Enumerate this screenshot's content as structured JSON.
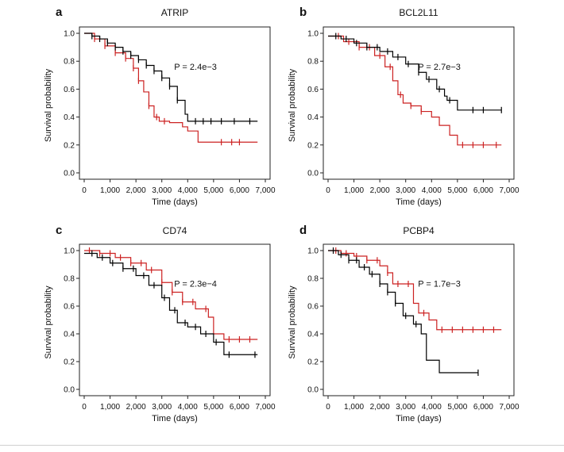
{
  "chart_data": [
    {
      "type": "line",
      "panel_label": "a",
      "title": "ATRIP",
      "pvalue": "P = 2.4e−3",
      "xlabel": "Time (days)",
      "ylabel": "Survival probability",
      "xlim": [
        0,
        7000
      ],
      "ylim": [
        0,
        1
      ],
      "xticks": [
        "0",
        "1,000",
        "2,000",
        "3,000",
        "4,000",
        "5,000",
        "6,000",
        "7,000"
      ],
      "yticks": [
        "0.0",
        "0.2",
        "0.4",
        "0.6",
        "0.8",
        "1.0"
      ],
      "series": [
        {
          "color": "#000000",
          "x": [
            0,
            300,
            600,
            900,
            1200,
            1500,
            1800,
            2100,
            2400,
            2700,
            3000,
            3300,
            3600,
            3900,
            4000,
            4200,
            6700
          ],
          "y": [
            1.0,
            0.98,
            0.96,
            0.93,
            0.9,
            0.87,
            0.84,
            0.81,
            0.77,
            0.73,
            0.68,
            0.62,
            0.52,
            0.42,
            0.37,
            0.37,
            0.37
          ],
          "censor_x": [
            300,
            600,
            900,
            1200,
            1500,
            1800,
            2100,
            2400,
            2700,
            3000,
            3300,
            3600,
            4300,
            4600,
            4900,
            5300,
            5800,
            6400
          ]
        },
        {
          "color": "#cc2222",
          "x": [
            0,
            400,
            800,
            1200,
            1600,
            1900,
            2100,
            2300,
            2500,
            2700,
            2900,
            3300,
            3800,
            4000,
            4400,
            6700
          ],
          "y": [
            1.0,
            0.96,
            0.91,
            0.86,
            0.82,
            0.75,
            0.66,
            0.58,
            0.48,
            0.4,
            0.37,
            0.36,
            0.33,
            0.3,
            0.22,
            0.22
          ],
          "censor_x": [
            400,
            800,
            1200,
            1600,
            1900,
            2100,
            2500,
            2800,
            3100,
            5300,
            5700,
            6000
          ]
        }
      ]
    },
    {
      "type": "line",
      "panel_label": "b",
      "title": "BCL2L11",
      "pvalue": "P = 2.7e−3",
      "xlabel": "Time (days)",
      "ylabel": "Survival probability",
      "xlim": [
        0,
        7000
      ],
      "ylim": [
        0,
        1
      ],
      "xticks": [
        "0",
        "1,000",
        "2,000",
        "3,000",
        "4,000",
        "5,000",
        "6,000",
        "7,000"
      ],
      "yticks": [
        "0.0",
        "0.2",
        "0.4",
        "0.6",
        "0.8",
        "1.0"
      ],
      "series": [
        {
          "color": "#000000",
          "x": [
            0,
            500,
            1000,
            1500,
            2000,
            2500,
            3000,
            3500,
            3800,
            4200,
            4500,
            4600,
            5000,
            6700
          ],
          "y": [
            0.98,
            0.96,
            0.93,
            0.9,
            0.87,
            0.83,
            0.78,
            0.72,
            0.67,
            0.6,
            0.55,
            0.52,
            0.45,
            0.45
          ],
          "censor_x": [
            300,
            700,
            1100,
            1500,
            1900,
            2300,
            2700,
            3100,
            3500,
            3900,
            4300,
            4700,
            5600,
            6000,
            6700
          ]
        },
        {
          "color": "#cc2222",
          "x": [
            0,
            600,
            1200,
            1800,
            2200,
            2500,
            2700,
            2900,
            3200,
            3600,
            4000,
            4300,
            4700,
            5000,
            6700
          ],
          "y": [
            0.98,
            0.94,
            0.9,
            0.84,
            0.76,
            0.66,
            0.56,
            0.5,
            0.48,
            0.44,
            0.4,
            0.34,
            0.27,
            0.2,
            0.2
          ],
          "censor_x": [
            400,
            800,
            1200,
            1600,
            2000,
            2400,
            2800,
            3200,
            3600,
            5200,
            5600,
            6000,
            6500
          ]
        }
      ]
    },
    {
      "type": "line",
      "panel_label": "c",
      "title": "CD74",
      "pvalue": "P = 2.3e−4",
      "xlabel": "Time (days)",
      "ylabel": "Survival probability",
      "xlim": [
        0,
        7000
      ],
      "ylim": [
        0,
        1
      ],
      "xticks": [
        "0",
        "1,000",
        "2,000",
        "3,000",
        "4,000",
        "5,000",
        "6,000",
        "7,000"
      ],
      "yticks": [
        "0.0",
        "0.2",
        "0.4",
        "0.6",
        "0.8",
        "1.0"
      ],
      "series": [
        {
          "color": "#000000",
          "x": [
            0,
            500,
            1000,
            1500,
            2000,
            2500,
            3000,
            3300,
            3600,
            4000,
            4500,
            5000,
            5400,
            6700
          ],
          "y": [
            0.98,
            0.95,
            0.91,
            0.87,
            0.82,
            0.75,
            0.66,
            0.57,
            0.48,
            0.45,
            0.4,
            0.34,
            0.25,
            0.25
          ],
          "censor_x": [
            300,
            700,
            1100,
            1500,
            1900,
            2300,
            2700,
            3100,
            3500,
            3900,
            4300,
            4700,
            5100,
            5600,
            6600
          ]
        },
        {
          "color": "#cc2222",
          "x": [
            0,
            600,
            1200,
            1800,
            2400,
            3000,
            3400,
            3800,
            4300,
            4800,
            5000,
            5400,
            6700
          ],
          "y": [
            1.0,
            0.98,
            0.95,
            0.91,
            0.86,
            0.77,
            0.7,
            0.63,
            0.58,
            0.52,
            0.4,
            0.36,
            0.36
          ],
          "censor_x": [
            200,
            600,
            1000,
            1400,
            1800,
            2200,
            2600,
            3000,
            3400,
            3800,
            4200,
            4700,
            5600,
            6000,
            6400
          ]
        }
      ]
    },
    {
      "type": "line",
      "panel_label": "d",
      "title": "PCBP4",
      "pvalue": "P = 1.7e−3",
      "xlabel": "Time (days)",
      "ylabel": "Survival probability",
      "xlim": [
        0,
        7000
      ],
      "ylim": [
        0,
        1
      ],
      "xticks": [
        "0",
        "1,000",
        "2,000",
        "3,000",
        "4,000",
        "5,000",
        "6,000",
        "7,000"
      ],
      "yticks": [
        "0.0",
        "0.2",
        "0.4",
        "0.6",
        "0.8",
        "1.0"
      ],
      "series": [
        {
          "color": "#000000",
          "x": [
            0,
            400,
            800,
            1200,
            1600,
            2000,
            2300,
            2600,
            2900,
            3300,
            3600,
            3800,
            4300,
            5800
          ],
          "y": [
            1.0,
            0.97,
            0.93,
            0.88,
            0.83,
            0.76,
            0.7,
            0.62,
            0.53,
            0.47,
            0.4,
            0.21,
            0.12,
            0.12
          ],
          "censor_x": [
            200,
            500,
            800,
            1100,
            1400,
            1700,
            2000,
            2300,
            2600,
            3000,
            3400,
            5800
          ]
        },
        {
          "color": "#cc2222",
          "x": [
            0,
            500,
            1000,
            1500,
            2000,
            2300,
            2500,
            3000,
            3300,
            3500,
            3900,
            4200,
            6700
          ],
          "y": [
            1.0,
            0.98,
            0.96,
            0.93,
            0.89,
            0.84,
            0.76,
            0.76,
            0.62,
            0.55,
            0.5,
            0.43,
            0.43
          ],
          "censor_x": [
            300,
            700,
            1100,
            1500,
            1900,
            2300,
            2700,
            3100,
            3700,
            4400,
            4800,
            5200,
            5600,
            6000,
            6400
          ]
        }
      ]
    }
  ]
}
